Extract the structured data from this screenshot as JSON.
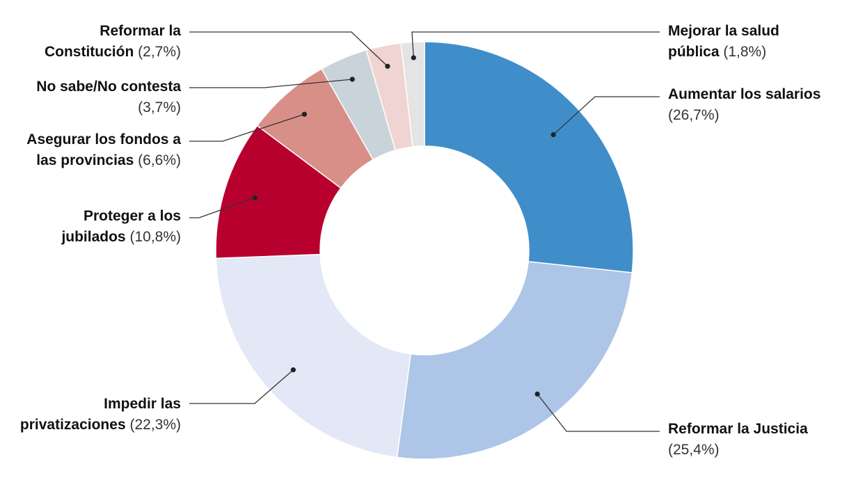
{
  "chart_data": {
    "type": "pie",
    "donut": true,
    "colors": {
      "Aumentar los salarios": "#3f8ec9",
      "Reformar la Justicia": "#adc5e6",
      "Impedir las privatizaciones": "#e2e8f5",
      "Proteger a los jubilados": "#b8002f",
      "Asegurar los fondos a las provincias": "#d88f88",
      "No sabe/No contesta": "#c9d3da",
      "Reformar la Constitución": "#f0d4d2",
      "Mejorar la salud pública": "#e4e4e4"
    },
    "slices": [
      {
        "label": "Aumentar los salarios",
        "name_lines": [
          "Aumentar los salarios"
        ],
        "pct_text": "(26,7%)",
        "value": 26.7
      },
      {
        "label": "Reformar la Justicia",
        "name_lines": [
          "Reformar la Justicia"
        ],
        "pct_text": "(25,4%)",
        "value": 25.4
      },
      {
        "label": "Impedir las privatizaciones",
        "name_lines": [
          "Impedir las",
          "privatizaciones"
        ],
        "pct_text": "(22,3%)",
        "value": 22.3
      },
      {
        "label": "Proteger a los jubilados",
        "name_lines": [
          "Proteger a los",
          "jubilados"
        ],
        "pct_text": "(10,8%)",
        "value": 10.8
      },
      {
        "label": "Asegurar los fondos a las provincias",
        "name_lines": [
          "Asegurar los fondos a",
          "las provincias"
        ],
        "pct_text": "(6,6%)",
        "value": 6.6
      },
      {
        "label": "No sabe/No contesta",
        "name_lines": [
          "No sabe/No contesta"
        ],
        "pct_text": "(3,7%)",
        "value": 3.7
      },
      {
        "label": "Reformar la Constitución",
        "name_lines": [
          "Reformar la",
          "Constitución"
        ],
        "pct_text": "(2,7%)",
        "value": 2.7
      },
      {
        "label": "Mejorar la salud pública",
        "name_lines": [
          "Mejorar la salud",
          "pública"
        ],
        "pct_text": "(1,8%)",
        "value": 1.8
      }
    ]
  }
}
